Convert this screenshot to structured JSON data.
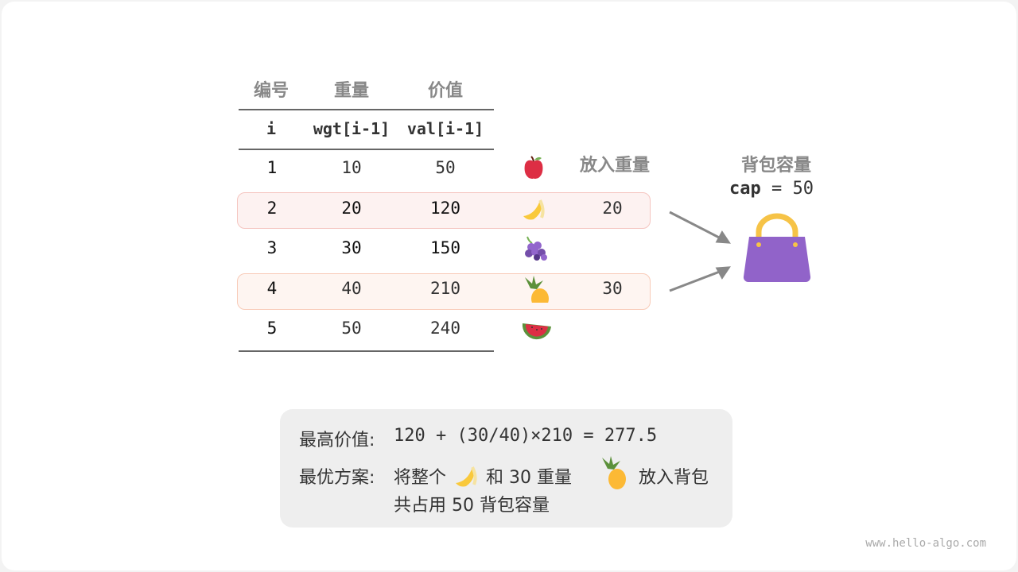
{
  "table": {
    "headers": [
      "编号",
      "重量",
      "价值"
    ],
    "subheaders": [
      "i",
      "wgt[i-1]",
      "val[i-1]"
    ],
    "rows": [
      {
        "i": "1",
        "wgt": "10",
        "val": "50",
        "fruit": "apple-icon",
        "put": ""
      },
      {
        "i": "2",
        "wgt": "20",
        "val": "120",
        "fruit": "banana-icon",
        "put": "20"
      },
      {
        "i": "3",
        "wgt": "30",
        "val": "150",
        "fruit": "grapes-icon",
        "put": ""
      },
      {
        "i": "4",
        "wgt": "40",
        "val": "210",
        "fruit": "pineapple-icon",
        "put": "30"
      },
      {
        "i": "5",
        "wgt": "50",
        "val": "240",
        "fruit": "watermelon-icon",
        "put": ""
      }
    ],
    "put_header": "放入重量"
  },
  "bag": {
    "title": "背包容量",
    "cap_label": "cap",
    "cap_eq": "= 50",
    "icon": "handbag-icon",
    "color": "#9163c9"
  },
  "highlight_colors": {
    "banana_row": "#fdf2f1",
    "pineapple_row": "#fef5f1"
  },
  "summary": {
    "max_label": "最高价值:",
    "max_expr": "120 + (30/40)×210 = 277.5",
    "plan_label": "最优方案:",
    "plan_a": "将整个",
    "plan_b": "和 30 重量",
    "plan_c": "放入背包",
    "plan_line2": "共占用 50 背包容量"
  },
  "watermark": "www.hello-algo.com"
}
